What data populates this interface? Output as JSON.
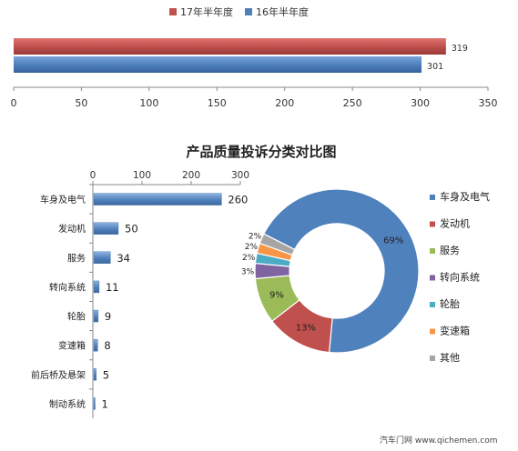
{
  "chart_data": [
    {
      "type": "bar",
      "orientation": "horizontal",
      "categories": [
        ""
      ],
      "series": [
        {
          "name": "17年半年度",
          "values": [
            319
          ],
          "color": "#c0504d"
        },
        {
          "name": "16年半年度",
          "values": [
            301
          ],
          "color": "#4f81bd"
        }
      ],
      "data_labels": [
        "319",
        "301"
      ],
      "xlim": [
        0,
        350
      ],
      "x_ticks": [
        "0",
        "50",
        "100",
        "150",
        "200",
        "250",
        "300",
        "350"
      ],
      "legend_position": "top",
      "grid": false
    },
    {
      "type": "bar",
      "orientation": "horizontal",
      "title": "产品质量投诉分类对比图",
      "categories": [
        "车身及电气",
        "发动机",
        "服务",
        "转向系统",
        "轮胎",
        "变速箱",
        "前后桥及悬架",
        "制动系统"
      ],
      "values": [
        260,
        50,
        34,
        11,
        9,
        8,
        5,
        1
      ],
      "data_labels": [
        "260",
        "50",
        "34",
        "11",
        "9",
        "8",
        "5",
        "1"
      ],
      "xlim": [
        0,
        300
      ],
      "x_ticks": [
        "0",
        "100",
        "200",
        "300"
      ],
      "x_axis_position": "top",
      "color": "#4f81bd",
      "grid": false
    },
    {
      "type": "pie",
      "style": "donut",
      "labels": [
        "车身及电气",
        "发动机",
        "服务",
        "转向系统",
        "轮胎",
        "变速箱",
        "其他"
      ],
      "values": [
        69,
        13,
        9,
        3,
        2,
        2,
        2
      ],
      "data_labels": [
        "69%",
        "13%",
        "9%",
        "3%",
        "2%",
        "2%",
        "2%"
      ],
      "colors": [
        "#4f81bd",
        "#c0504d",
        "#9bbb59",
        "#8064a2",
        "#4bacc6",
        "#f79646",
        "#a5a5a5"
      ],
      "legend_position": "right"
    }
  ],
  "watermark": "汽车门网 www.qichemen.com"
}
